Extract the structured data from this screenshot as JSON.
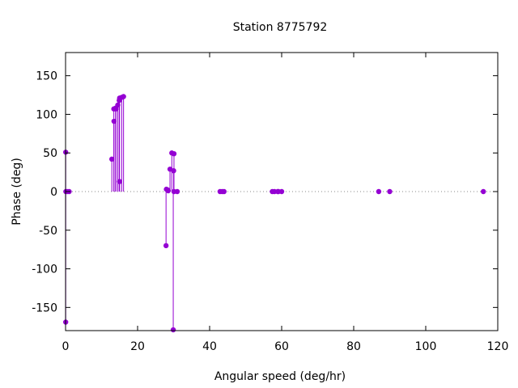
{
  "chart_data": {
    "type": "scatter",
    "style": "impulses-with-points",
    "title": "Station 8775792",
    "xlabel": "Angular speed (deg/hr)",
    "ylabel": "Phase (deg)",
    "xlim": [
      0,
      120
    ],
    "ylim": [
      -180,
      180
    ],
    "xticks": [
      0,
      20,
      40,
      60,
      80,
      100,
      120
    ],
    "yticks": [
      -150,
      -100,
      -50,
      0,
      50,
      100,
      150
    ],
    "zero_line": "dotted",
    "grid": false,
    "color": "#9400D3",
    "series": [
      {
        "points": [
          [
            0.04,
            51
          ],
          [
            0.04,
            -169
          ],
          [
            0.08,
            0
          ],
          [
            0.5,
            0
          ],
          [
            1.0,
            0
          ],
          [
            12.85,
            42
          ],
          [
            13.4,
            107
          ],
          [
            13.45,
            91
          ],
          [
            13.9,
            108
          ],
          [
            14.0,
            107
          ],
          [
            14.5,
            112
          ],
          [
            14.9,
            118
          ],
          [
            15.0,
            13
          ],
          [
            15.0,
            121
          ],
          [
            15.6,
            122
          ],
          [
            16.1,
            123
          ],
          [
            27.9,
            -70
          ],
          [
            28.0,
            3
          ],
          [
            28.4,
            2
          ],
          [
            28.5,
            1
          ],
          [
            29.0,
            29
          ],
          [
            29.5,
            50
          ],
          [
            29.9,
            -179
          ],
          [
            30.0,
            27
          ],
          [
            30.1,
            0
          ],
          [
            30.1,
            49
          ],
          [
            31.0,
            0
          ],
          [
            42.9,
            0
          ],
          [
            43.5,
            0
          ],
          [
            44.0,
            0
          ],
          [
            57.4,
            0
          ],
          [
            58.0,
            0
          ],
          [
            58.9,
            0
          ],
          [
            59.1,
            0
          ],
          [
            60.0,
            0
          ],
          [
            86.95,
            0
          ],
          [
            90.0,
            0
          ],
          [
            116.0,
            0
          ]
        ]
      }
    ]
  }
}
